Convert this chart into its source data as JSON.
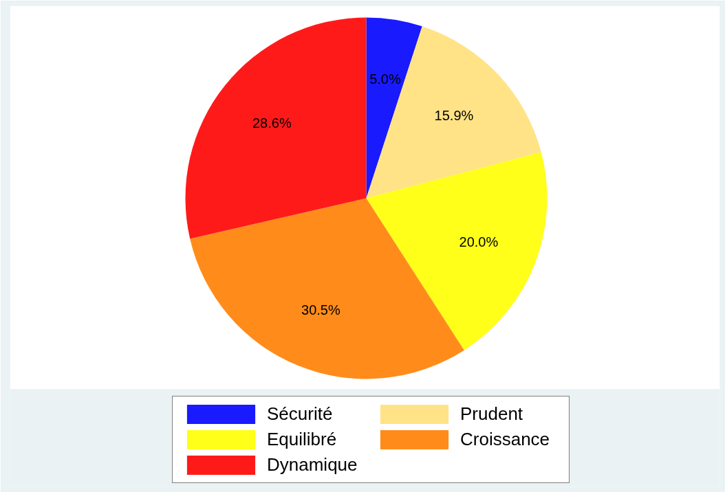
{
  "chart_data": {
    "type": "pie",
    "categories": [
      "Sécurité",
      "Prudent",
      "Equilibré",
      "Croissance",
      "Dynamique"
    ],
    "values": [
      5.0,
      15.9,
      20.0,
      30.5,
      28.6
    ],
    "colors": [
      "#1a1aff",
      "#ffe386",
      "#ffff1a",
      "#ff8c1a",
      "#ff1a1a"
    ],
    "value_labels": [
      "5.0%",
      "15.9%",
      "20.0%",
      "30.5%",
      "28.6%"
    ],
    "legend": "bottom"
  }
}
